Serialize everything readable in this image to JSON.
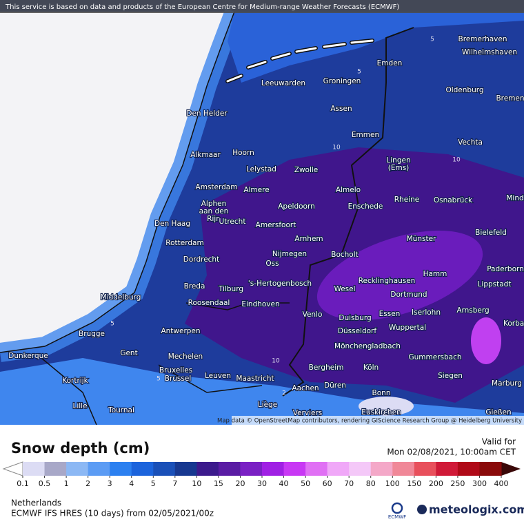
{
  "header": {
    "disclaimer": "This service is based on data and products of the European Centre for Medium-range Weather Forecasts (ECMWF)"
  },
  "map": {
    "attribution": "Map data © OpenStreetMap contributors, rendering GIScience Research Group @ Heidelberg University",
    "cities": [
      "Bremerhaven",
      "Wilhelmshaven",
      "Emden",
      "Leeuwarden",
      "Groningen",
      "Oldenburg",
      "Bremen",
      "Den Helder",
      "Assen",
      "Emmen",
      "Vechta",
      "Alkmaar",
      "Hoorn",
      [
        "Lingen",
        "(Ems)"
      ],
      "Lelystad",
      "Zwolle",
      "Amsterdam",
      "Almere",
      "Almelo",
      "Rheine",
      "Osnabrück",
      "Mind",
      [
        "Alphen",
        "aan den",
        "Rijn"
      ],
      "Apeldoorn",
      "Enschede",
      "Utrecht",
      "Amersfoort",
      "Den Haag",
      "Bielefeld",
      "Arnhem",
      "Münster",
      "Rotterdam",
      "Nijmegen",
      "Bocholt",
      "Dordrecht",
      "Oss",
      "Hamm",
      "Paderborn",
      "Recklinghausen",
      "Breda",
      "Tilburg",
      "'s-Hertogenbosch",
      "Wesel",
      "Lippstadt",
      "Middelburg",
      "Dortmund",
      "Roosendaal",
      "Eindhoven",
      "Iserlohn",
      "Arnsberg",
      "Venlo",
      "Essen",
      "Duisburg",
      "Korbac",
      "Wuppertal",
      "Düsseldorf",
      "Antwerpen",
      "Brugge",
      "Mönchengladbach",
      "Dunkerque",
      "Gent",
      "Mechelen",
      "Gummersbach",
      "Bergheim",
      "Köln",
      "Bruxelles",
      "Brussel",
      "Leuven",
      "Maastricht",
      "Siegen",
      "Kortrijk",
      "Düren",
      "Aachen",
      "Marburg",
      "Bonn",
      "Lille",
      "Liège",
      "Tournai",
      "Euskirchen",
      "Gießen",
      "Verviers"
    ],
    "contour_labels": [
      5,
      5,
      5,
      5,
      10,
      10,
      10,
      2
    ]
  },
  "legend": {
    "title": "Snow depth (cm)",
    "valid_label": "Valid for",
    "valid_time": "Mon 02/08/2021, 10:00am CET",
    "ticks": [
      0.1,
      0.5,
      1,
      2,
      3,
      4,
      5,
      7,
      10,
      15,
      20,
      30,
      40,
      50,
      60,
      70,
      80,
      100,
      150,
      200,
      250,
      300,
      400
    ],
    "colors": [
      "#dcdcf4",
      "#a8a8c8",
      "#8cb8f4",
      "#5c9cf4",
      "#2c80f0",
      "#1c64dc",
      "#1a50b8",
      "#173890",
      "#3c1a8c",
      "#5a1ca4",
      "#7a20c4",
      "#a020e4",
      "#c838f4",
      "#e070f4",
      "#f0a8f8",
      "#f4c8f8",
      "#f4a8c8",
      "#f08898",
      "#e8505c",
      "#d01a38",
      "#b00a18",
      "#8a0a0a"
    ],
    "under_color": "#ffffff",
    "over_color": "#3a0808"
  },
  "footer": {
    "region": "Netherlands",
    "model": "ECMWF IFS HRES (10 days) from 02/05/2021/00z",
    "ecmwf": "ECMWF",
    "brand": "meteologix.com"
  }
}
